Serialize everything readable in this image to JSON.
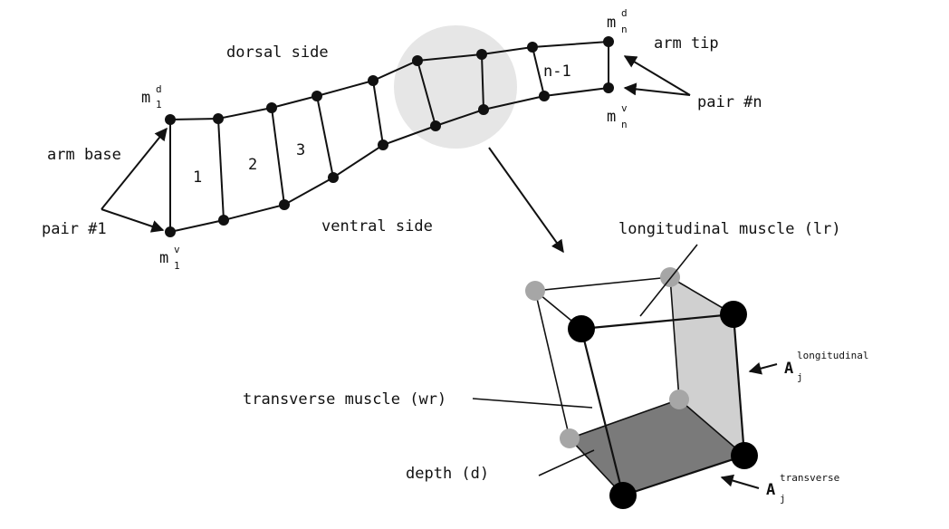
{
  "labels": {
    "dorsal_side": "dorsal side",
    "ventral_side": "ventral side",
    "arm_base": "arm base",
    "arm_tip": "arm tip",
    "pair_1": "pair #1",
    "pair_n": "pair #n",
    "longitudinal_muscle": "longitudinal muscle (lr)",
    "transverse_muscle": "transverse muscle (wr)",
    "depth": "depth (d)"
  },
  "mass_labels": {
    "m1d": {
      "base": "m",
      "sub": "1",
      "sup": "d"
    },
    "m1v": {
      "base": "m",
      "sub": "1",
      "sup": "v"
    },
    "mnd": {
      "base": "m",
      "sub": "n",
      "sup": "d"
    },
    "mnv": {
      "base": "m",
      "sub": "n",
      "sup": "v"
    }
  },
  "area_labels": {
    "longitudinal": {
      "base": "A",
      "sub": "j",
      "sup": "longitudinal"
    },
    "transverse": {
      "base": "A",
      "sub": "j",
      "sup": "transverse"
    }
  },
  "segment_numbers": [
    "1",
    "2",
    "3",
    "n-1"
  ]
}
